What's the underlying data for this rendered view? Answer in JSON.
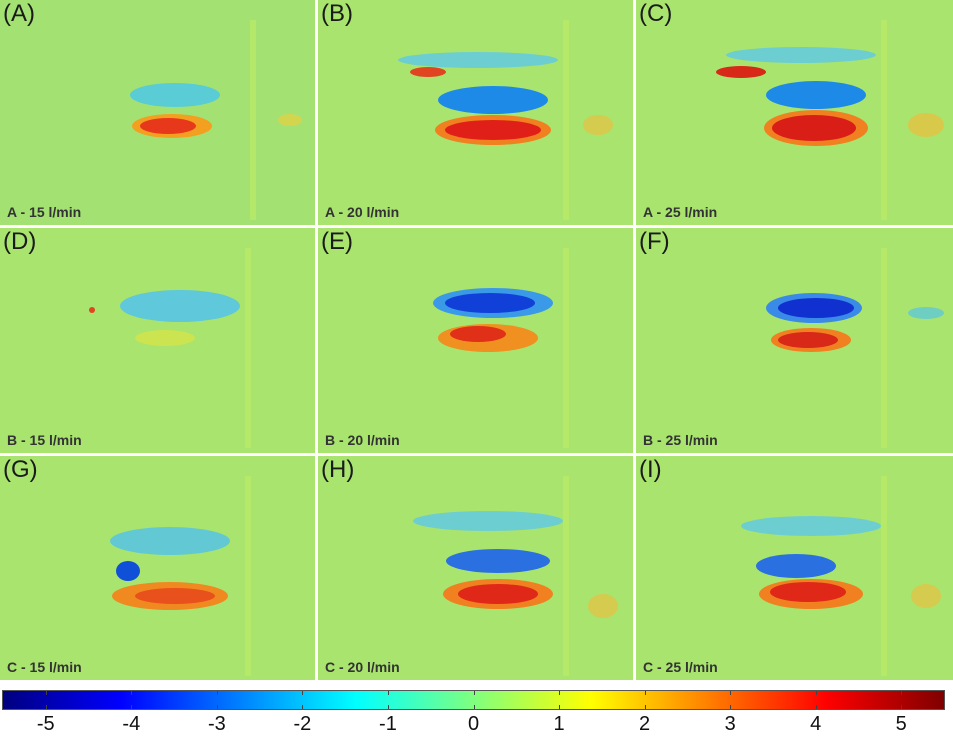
{
  "panels": [
    {
      "letter": "(A)",
      "caption": "A - 15 l/min"
    },
    {
      "letter": "(B)",
      "caption": "A - 20 l/min"
    },
    {
      "letter": "(C)",
      "caption": "A - 25 l/min"
    },
    {
      "letter": "(D)",
      "caption": "B - 15 l/min"
    },
    {
      "letter": "(E)",
      "caption": "B - 20 l/min"
    },
    {
      "letter": "(F)",
      "caption": "B - 25 l/min"
    },
    {
      "letter": "(G)",
      "caption": "C - 15 l/min"
    },
    {
      "letter": "(H)",
      "caption": "C - 20 l/min"
    },
    {
      "letter": "(I)",
      "caption": "C - 25 l/min"
    }
  ],
  "colorbar": {
    "min": -5.5,
    "max": 5.5,
    "labels": [
      "-5",
      "-4",
      "-3",
      "-2",
      "-1",
      "0",
      "1",
      "2",
      "3",
      "4",
      "5"
    ],
    "colors": [
      "#00007f",
      "#0000ff",
      "#007fff",
      "#00ffff",
      "#7fff7f",
      "#ffff00",
      "#ff7f00",
      "#ff0000",
      "#7f0000"
    ]
  },
  "colors": {
    "background_field": "#a6e66a",
    "positive": "#e8301a",
    "negative": "#1e6ee8"
  }
}
